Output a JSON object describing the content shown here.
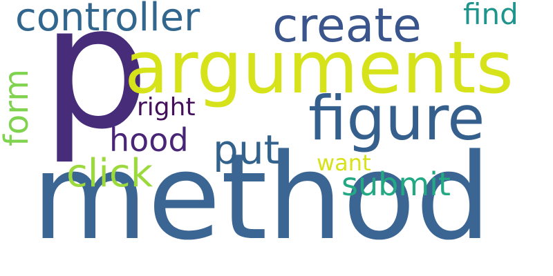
{
  "words": {
    "method": {
      "text": "method",
      "color": "#3b6593"
    },
    "p": {
      "text": "p",
      "color": "#472c7a"
    },
    "arguments": {
      "text": "arguments",
      "color": "#d6e21a"
    },
    "figure": {
      "text": "figure",
      "color": "#355f8d"
    },
    "create": {
      "text": "create",
      "color": "#3a548c"
    },
    "controller": {
      "text": "controller",
      "color": "#31668e"
    },
    "find": {
      "text": "find",
      "color": "#1f948c"
    },
    "put": {
      "text": "put",
      "color": "#33638d"
    },
    "hood": {
      "text": "hood",
      "color": "#482576"
    },
    "right": {
      "text": "right",
      "color": "#440f5b"
    },
    "click": {
      "text": "click",
      "color": "#9bd93c"
    },
    "submit": {
      "text": "submit",
      "color": "#23a884"
    },
    "want": {
      "text": "want",
      "color": "#d8e219"
    },
    "form": {
      "text": "form",
      "color": "#7fd34e"
    }
  }
}
